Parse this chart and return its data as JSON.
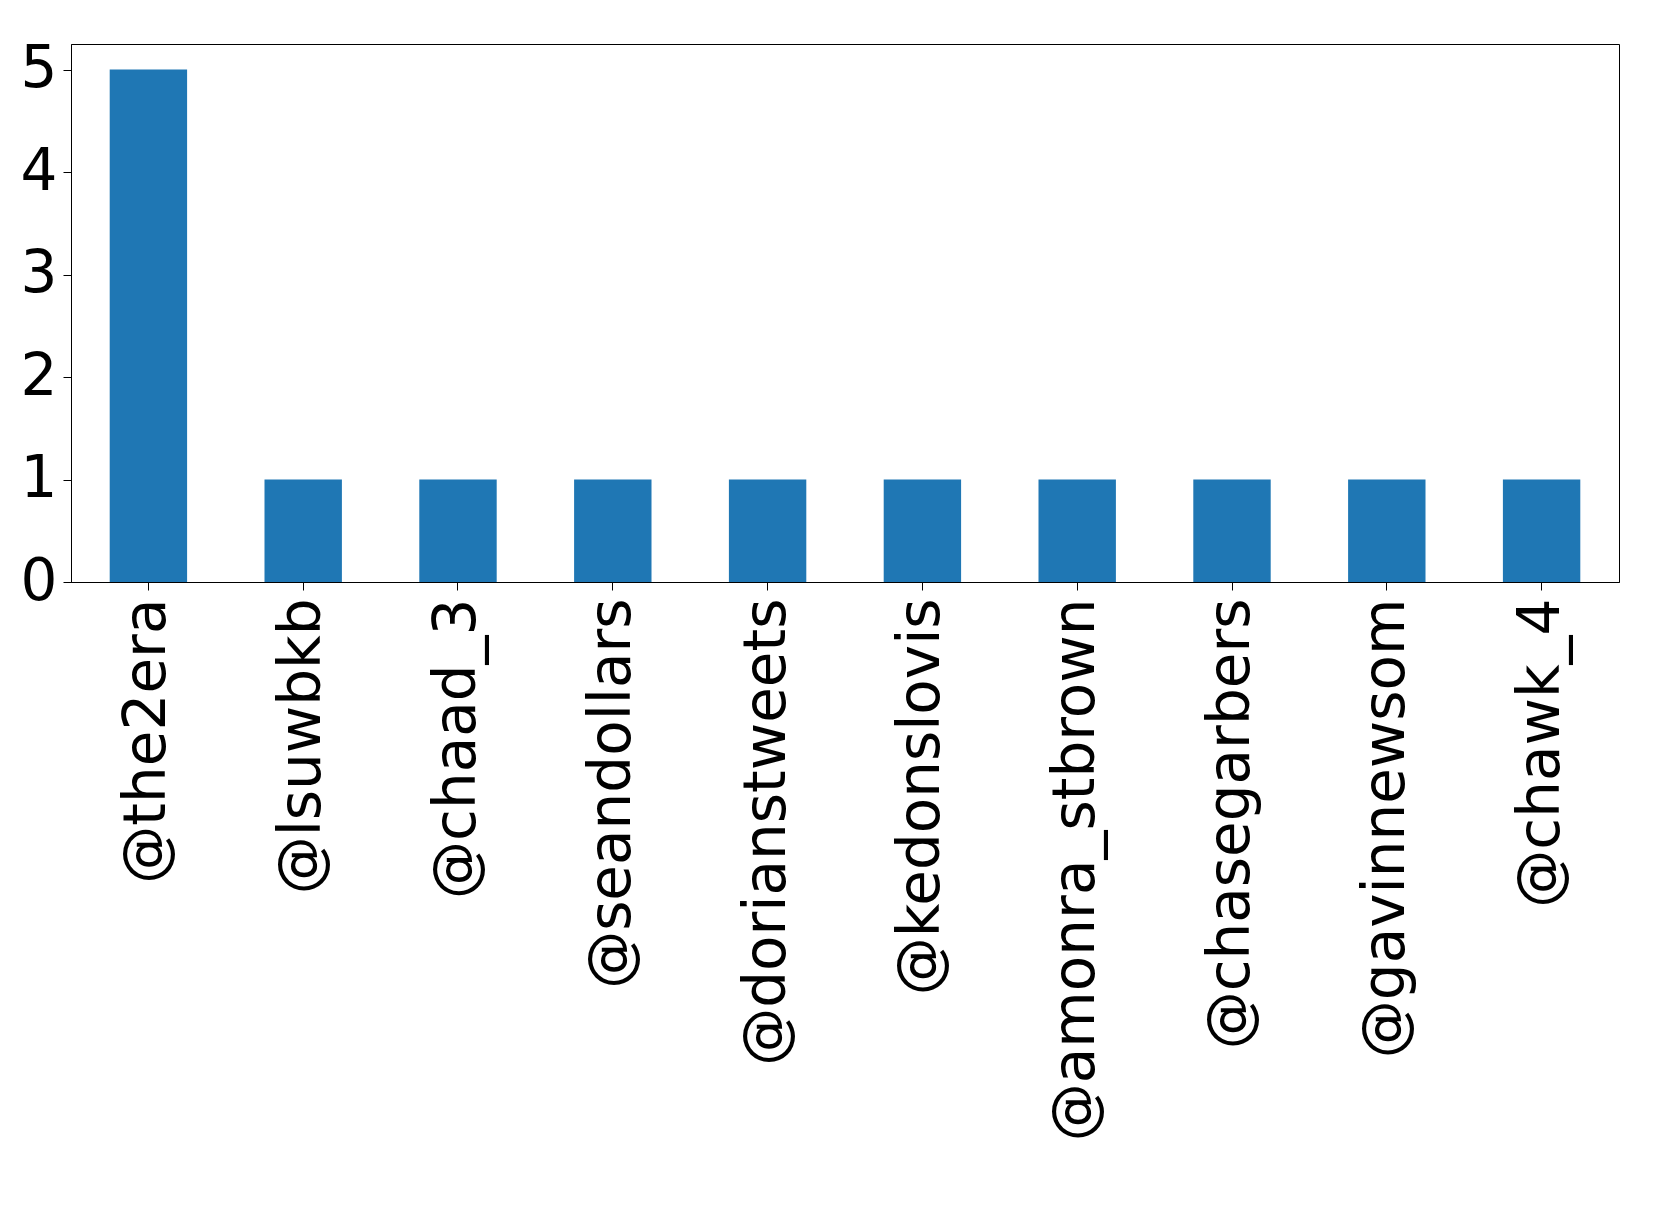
{
  "chart_data": {
    "type": "bar",
    "categories": [
      "@the2era",
      "@lsuwbkb",
      "@chaad_3",
      "@seandollars",
      "@dorianstweets",
      "@kedonslovis",
      "@amonra_stbrown",
      "@chasegarbers",
      "@gavinnewsom",
      "@chawk_4"
    ],
    "values": [
      5,
      1,
      1,
      1,
      1,
      1,
      1,
      1,
      1,
      1
    ],
    "color": "#1f77b4",
    "ylim": [
      0,
      5.25
    ],
    "yticks": [
      0,
      1,
      2,
      3,
      4,
      5
    ],
    "grid": false
  }
}
